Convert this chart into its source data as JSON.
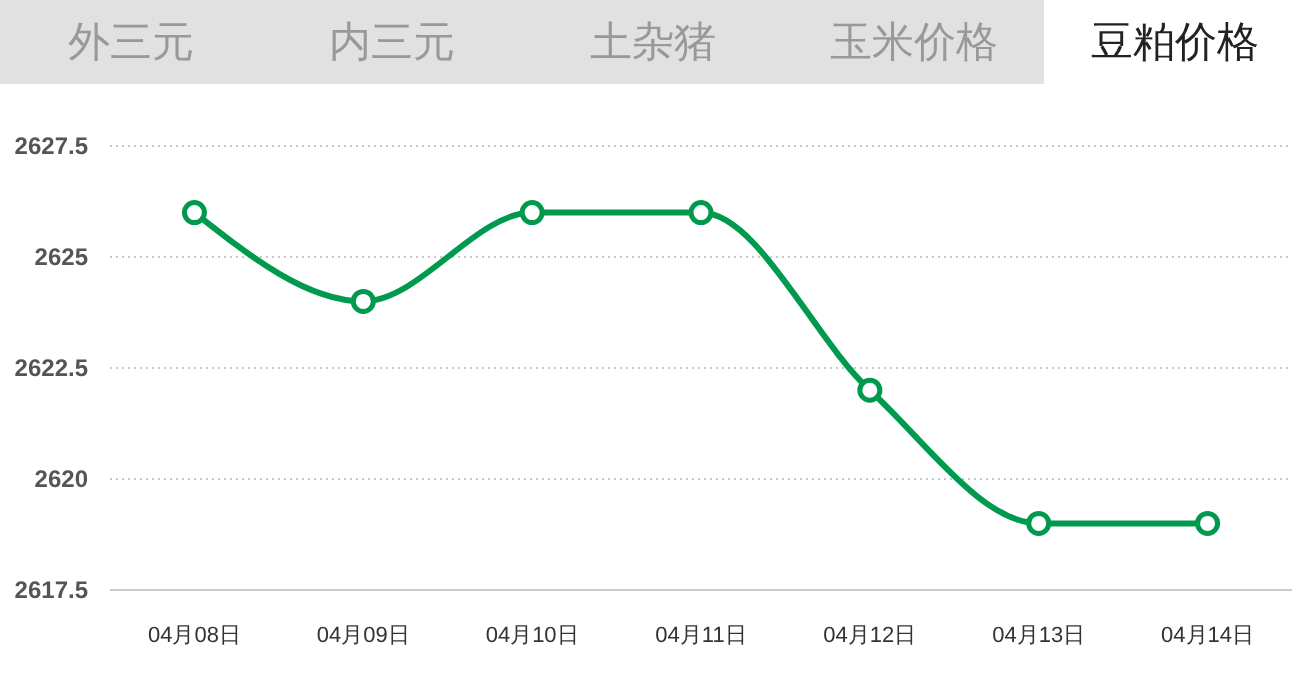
{
  "chart_data": {
    "type": "line",
    "annotations": [
      "外三元",
      "内三元",
      "土杂猪",
      "玉米价格",
      "豆粕价格"
    ],
    "categories": [
      "04月08日",
      "04月09日",
      "04月10日",
      "04月11日",
      "04月12日",
      "04月13日",
      "04月14日"
    ],
    "series": [
      {
        "color": "#009a4e",
        "values": [
          2626,
          2624,
          2626,
          2626,
          2622,
          2619,
          2619
        ]
      }
    ],
    "ylim": [
      2617.5,
      2627.5
    ],
    "yticks": [
      2617.5,
      2620,
      2622.5,
      2625,
      2627.5
    ],
    "grid": "y",
    "marker": "circle",
    "line_style": "solid"
  }
}
